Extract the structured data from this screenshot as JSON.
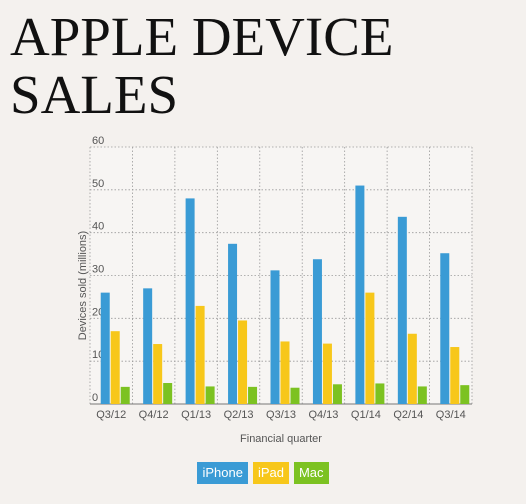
{
  "title": "APPLE DEVICE SALES",
  "chart_data": {
    "type": "bar",
    "title": "APPLE DEVICE SALES",
    "xlabel": "Financial quarter",
    "ylabel": "Devices sold (millions)",
    "ylim": [
      0,
      60
    ],
    "yticks": [
      0,
      10,
      20,
      30,
      40,
      50,
      60
    ],
    "grid": true,
    "legend_position": "bottom-center",
    "categories": [
      "Q3/12",
      "Q4/12",
      "Q1/13",
      "Q2/13",
      "Q3/13",
      "Q4/13",
      "Q1/14",
      "Q2/14",
      "Q3/14"
    ],
    "series": [
      {
        "name": "iPhone",
        "color": "#3a9bd5",
        "values": [
          26,
          27,
          48,
          37.4,
          31.2,
          33.8,
          51,
          43.7,
          35.2
        ]
      },
      {
        "name": "iPad",
        "color": "#f7c71a",
        "values": [
          17.0,
          14.0,
          22.9,
          19.5,
          14.6,
          14.1,
          26.0,
          16.4,
          13.3
        ]
      },
      {
        "name": "Mac",
        "color": "#7cc221",
        "values": [
          4.0,
          4.9,
          4.1,
          4.0,
          3.8,
          4.6,
          4.8,
          4.1,
          4.4
        ]
      }
    ]
  }
}
